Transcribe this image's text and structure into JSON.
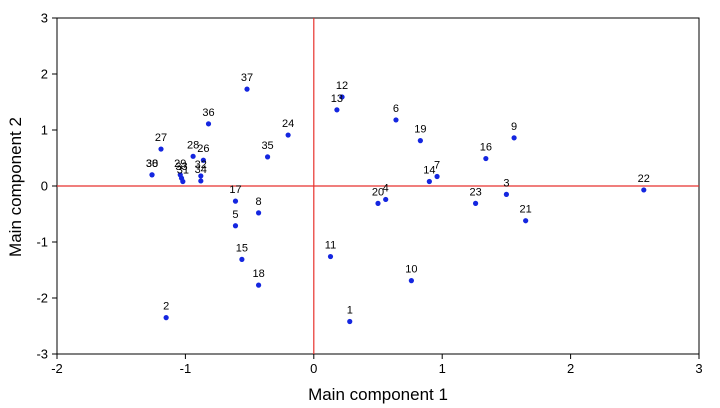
{
  "chart_data": {
    "type": "scatter",
    "title": "",
    "xlabel": "Main component 1",
    "ylabel": "Main component 2",
    "xlim": [
      -2,
      3
    ],
    "ylim": [
      -3,
      3
    ],
    "xticks": [
      "-2",
      "-1",
      "0",
      "1",
      "2",
      "3"
    ],
    "yticks": [
      "-3",
      "-2",
      "-1",
      "0",
      "1",
      "2",
      "3"
    ],
    "grid": false,
    "reference_lines": {
      "x": 0,
      "y": 0,
      "color": "#e8322d"
    },
    "point_color": "#1426e0",
    "points": [
      {
        "label": "1",
        "x": 0.28,
        "y": -2.42
      },
      {
        "label": "2",
        "x": -1.15,
        "y": -2.35
      },
      {
        "label": "3",
        "x": 1.5,
        "y": -0.15
      },
      {
        "label": "4",
        "x": 0.56,
        "y": -0.24
      },
      {
        "label": "5",
        "x": -0.61,
        "y": -0.71
      },
      {
        "label": "6",
        "x": 0.64,
        "y": 1.18
      },
      {
        "label": "7",
        "x": 0.96,
        "y": 0.17
      },
      {
        "label": "8",
        "x": -0.43,
        "y": -0.48
      },
      {
        "label": "9",
        "x": 1.56,
        "y": 0.86
      },
      {
        "label": "10",
        "x": 0.76,
        "y": -1.69
      },
      {
        "label": "11",
        "x": 0.13,
        "y": -1.26
      },
      {
        "label": "12",
        "x": 0.22,
        "y": 1.59
      },
      {
        "label": "13",
        "x": 0.18,
        "y": 1.36
      },
      {
        "label": "14",
        "x": 0.9,
        "y": 0.08
      },
      {
        "label": "15",
        "x": -0.56,
        "y": -1.31
      },
      {
        "label": "16",
        "x": 1.34,
        "y": 0.49
      },
      {
        "label": "17",
        "x": -0.61,
        "y": -0.27
      },
      {
        "label": "18",
        "x": -0.43,
        "y": -1.77
      },
      {
        "label": "19",
        "x": 0.83,
        "y": 0.81
      },
      {
        "label": "20",
        "x": 0.5,
        "y": -0.31
      },
      {
        "label": "21",
        "x": 1.65,
        "y": -0.62
      },
      {
        "label": "22",
        "x": 2.57,
        "y": -0.07
      },
      {
        "label": "23",
        "x": 1.26,
        "y": -0.31
      },
      {
        "label": "24",
        "x": -0.2,
        "y": 0.91
      },
      {
        "label": "26",
        "x": -0.86,
        "y": 0.46
      },
      {
        "label": "27",
        "x": -1.19,
        "y": 0.66
      },
      {
        "label": "28",
        "x": -0.94,
        "y": 0.53
      },
      {
        "label": "29",
        "x": -1.04,
        "y": 0.2
      },
      {
        "label": "31",
        "x": -1.02,
        "y": 0.08
      },
      {
        "label": "32",
        "x": -0.88,
        "y": 0.18
      },
      {
        "label": "34",
        "x": -0.88,
        "y": 0.09
      },
      {
        "label": "35",
        "x": -0.36,
        "y": 0.52
      },
      {
        "label": "36",
        "x": -0.82,
        "y": 1.11
      },
      {
        "label": "37",
        "x": -0.52,
        "y": 1.73
      },
      {
        "label": "38",
        "x": -1.26,
        "y": 0.2
      },
      {
        "label": "30",
        "x": -1.26,
        "y": 0.2
      },
      {
        "label": "33",
        "x": -1.03,
        "y": 0.14
      }
    ]
  }
}
